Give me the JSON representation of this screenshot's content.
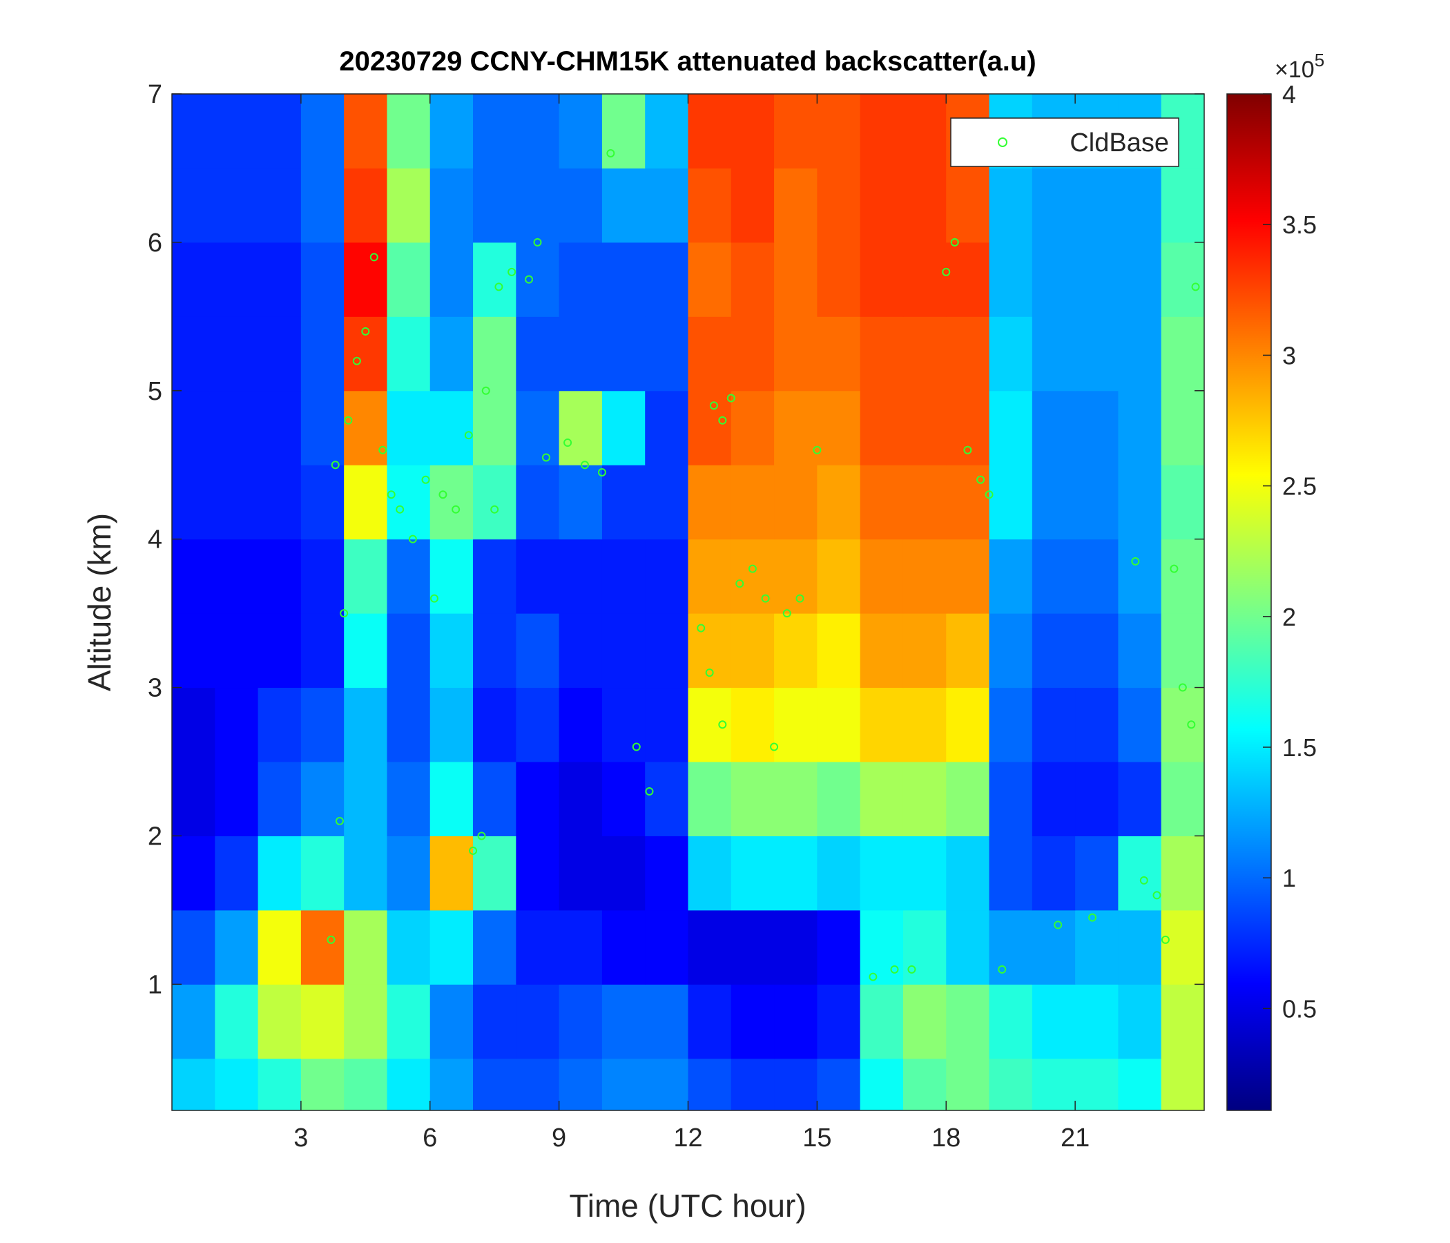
{
  "chart_data": {
    "type": "heatmap",
    "title": "20230729 CCNY-CHM15K attenuated backscatter(a.u)",
    "xlabel": "Time (UTC hour)",
    "ylabel": "Altitude (km)",
    "colormap": "jet",
    "xlim": [
      0,
      24
    ],
    "ylim": [
      0.15,
      7
    ],
    "xticks": [
      3,
      6,
      9,
      12,
      15,
      18,
      21
    ],
    "yticks": [
      1,
      2,
      3,
      4,
      5,
      6,
      7
    ],
    "clim": [
      11000,
      400000
    ],
    "colorbar_ticks": [
      {
        "value": 50000,
        "label": "0.5"
      },
      {
        "value": 100000,
        "label": "1"
      },
      {
        "value": 150000,
        "label": "1.5"
      },
      {
        "value": 200000,
        "label": "2"
      },
      {
        "value": 250000,
        "label": "2.5"
      },
      {
        "value": 300000,
        "label": "3"
      },
      {
        "value": 350000,
        "label": "3.5"
      },
      {
        "value": 400000,
        "label": "4"
      }
    ],
    "colorbar_multiplier": {
      "base": "×10",
      "exponent": "5"
    },
    "xbins": [
      0,
      1,
      2,
      3,
      4,
      5,
      6,
      7,
      8,
      9,
      10,
      11,
      12,
      13,
      14,
      15,
      16,
      17,
      18,
      19,
      20,
      21,
      22,
      23,
      24
    ],
    "ybins": [
      0.15,
      0.5,
      1,
      1.5,
      2,
      2.5,
      3,
      3.5,
      4,
      4.5,
      5,
      5.5,
      6,
      6.5,
      7
    ],
    "values": [
      [
        140000,
        150000,
        170000,
        200000,
        190000,
        150000,
        120000,
        90000,
        90000,
        100000,
        110000,
        110000,
        90000,
        80000,
        80000,
        90000,
        160000,
        190000,
        200000,
        180000,
        170000,
        170000,
        160000,
        230000
      ],
      [
        120000,
        170000,
        230000,
        240000,
        220000,
        170000,
        110000,
        80000,
        80000,
        90000,
        100000,
        100000,
        70000,
        60000,
        60000,
        70000,
        180000,
        210000,
        200000,
        170000,
        150000,
        150000,
        140000,
        230000
      ],
      [
        90000,
        120000,
        250000,
        310000,
        220000,
        140000,
        150000,
        100000,
        70000,
        70000,
        60000,
        60000,
        50000,
        50000,
        50000,
        60000,
        160000,
        170000,
        140000,
        120000,
        120000,
        130000,
        130000,
        240000
      ],
      [
        60000,
        80000,
        150000,
        170000,
        130000,
        110000,
        280000,
        180000,
        60000,
        50000,
        50000,
        60000,
        140000,
        150000,
        150000,
        140000,
        150000,
        150000,
        140000,
        90000,
        80000,
        90000,
        170000,
        220000
      ],
      [
        50000,
        60000,
        90000,
        110000,
        130000,
        100000,
        160000,
        90000,
        60000,
        50000,
        60000,
        80000,
        200000,
        210000,
        210000,
        200000,
        220000,
        220000,
        210000,
        90000,
        70000,
        70000,
        80000,
        200000
      ],
      [
        50000,
        60000,
        80000,
        90000,
        130000,
        90000,
        130000,
        70000,
        80000,
        60000,
        70000,
        70000,
        250000,
        260000,
        250000,
        250000,
        270000,
        270000,
        260000,
        100000,
        80000,
        80000,
        100000,
        210000
      ],
      [
        60000,
        60000,
        60000,
        70000,
        160000,
        90000,
        140000,
        80000,
        90000,
        70000,
        70000,
        70000,
        280000,
        280000,
        270000,
        260000,
        290000,
        290000,
        280000,
        110000,
        90000,
        90000,
        110000,
        200000
      ],
      [
        60000,
        60000,
        60000,
        70000,
        180000,
        100000,
        160000,
        80000,
        70000,
        70000,
        70000,
        70000,
        290000,
        290000,
        290000,
        280000,
        300000,
        300000,
        300000,
        120000,
        100000,
        100000,
        120000,
        200000
      ],
      [
        70000,
        70000,
        70000,
        80000,
        250000,
        160000,
        200000,
        180000,
        90000,
        100000,
        80000,
        80000,
        300000,
        300000,
        300000,
        290000,
        310000,
        310000,
        310000,
        150000,
        110000,
        110000,
        120000,
        190000
      ],
      [
        70000,
        70000,
        70000,
        90000,
        300000,
        150000,
        150000,
        200000,
        100000,
        220000,
        150000,
        80000,
        320000,
        310000,
        300000,
        300000,
        320000,
        320000,
        320000,
        150000,
        110000,
        110000,
        120000,
        200000
      ],
      [
        70000,
        70000,
        70000,
        90000,
        330000,
        170000,
        120000,
        200000,
        90000,
        90000,
        90000,
        90000,
        320000,
        320000,
        310000,
        310000,
        320000,
        320000,
        320000,
        140000,
        120000,
        120000,
        120000,
        200000
      ],
      [
        70000,
        70000,
        70000,
        90000,
        350000,
        190000,
        110000,
        170000,
        100000,
        90000,
        90000,
        90000,
        310000,
        320000,
        310000,
        320000,
        330000,
        330000,
        330000,
        130000,
        120000,
        120000,
        120000,
        190000
      ],
      [
        80000,
        80000,
        80000,
        100000,
        330000,
        220000,
        110000,
        100000,
        100000,
        100000,
        120000,
        120000,
        320000,
        330000,
        310000,
        320000,
        330000,
        330000,
        320000,
        130000,
        120000,
        120000,
        120000,
        180000
      ],
      [
        80000,
        80000,
        80000,
        100000,
        320000,
        200000,
        120000,
        100000,
        100000,
        110000,
        200000,
        130000,
        330000,
        330000,
        320000,
        320000,
        330000,
        330000,
        320000,
        140000,
        130000,
        130000,
        130000,
        180000
      ]
    ],
    "series": [
      {
        "name": "CldBase",
        "type": "scatter",
        "color": "#33ff33",
        "x": [
          3.7,
          3.8,
          3.9,
          4.0,
          4.1,
          4.3,
          4.5,
          4.7,
          4.9,
          5.1,
          5.3,
          5.6,
          5.9,
          6.1,
          6.3,
          6.6,
          6.9,
          7.0,
          7.2,
          7.3,
          7.5,
          7.6,
          7.9,
          8.3,
          8.5,
          8.7,
          9.2,
          9.6,
          10.0,
          10.2,
          10.8,
          11.1,
          12.3,
          12.5,
          12.6,
          12.8,
          13.0,
          12.8,
          13.2,
          13.5,
          13.8,
          14.0,
          14.3,
          14.6,
          15.0,
          16.3,
          16.8,
          17.2,
          18.0,
          18.2,
          18.5,
          18.8,
          19.0,
          19.3,
          20.6,
          21.4,
          22.4,
          22.6,
          22.9,
          23.1,
          23.3,
          23.5,
          23.7,
          23.8
        ],
        "values": [
          1.3,
          4.5,
          2.1,
          3.5,
          4.8,
          5.2,
          5.4,
          5.9,
          4.6,
          4.3,
          4.2,
          4.0,
          4.4,
          3.6,
          4.3,
          4.2,
          4.7,
          1.9,
          2.0,
          5.0,
          4.2,
          5.7,
          5.8,
          5.75,
          6.0,
          4.55,
          4.65,
          4.5,
          4.45,
          6.6,
          2.6,
          2.3,
          3.4,
          3.1,
          4.9,
          4.8,
          4.95,
          2.75,
          3.7,
          3.8,
          3.6,
          2.6,
          3.5,
          3.6,
          4.6,
          1.05,
          1.1,
          1.1,
          5.8,
          6.0,
          4.6,
          4.4,
          4.3,
          1.1,
          1.4,
          1.45,
          3.85,
          1.7,
          1.6,
          1.3,
          3.8,
          3.0,
          2.75,
          5.7
        ]
      }
    ],
    "legend": "upper right"
  }
}
